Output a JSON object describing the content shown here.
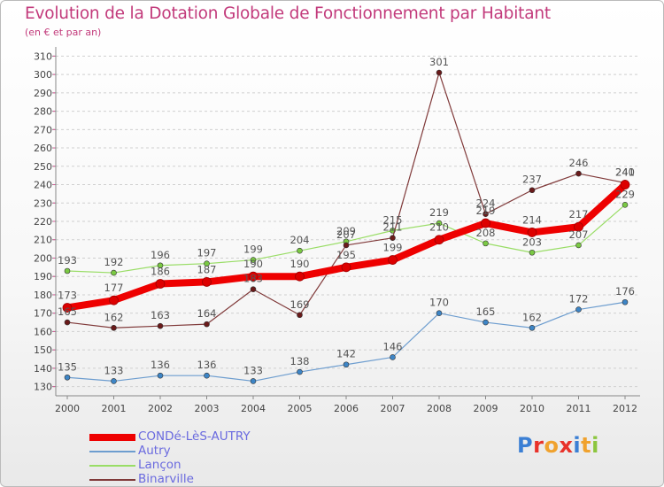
{
  "title": "Evolution de la Dotation Globale de Fonctionnement par Habitant",
  "subtitle": "(en € et par an)",
  "logo": {
    "text": "Proxiti",
    "letter_colors": [
      "#3b7fd4",
      "#e8322a",
      "#f0a22e",
      "#e8322a",
      "#3b7fd4",
      "#f0a22e",
      "#8cc63f"
    ]
  },
  "chart_data": {
    "type": "line",
    "title": "Evolution de la Dotation Globale de Fonctionnement par Habitant",
    "subtitle": "(en € et par an)",
    "xlabel": "",
    "ylabel": "",
    "x": [
      "2000",
      "2001",
      "2002",
      "2003",
      "2004",
      "2005",
      "2006",
      "2007",
      "2008",
      "2009",
      "2010",
      "2011",
      "2012"
    ],
    "ylim": [
      125,
      315
    ],
    "yticks": [
      130,
      140,
      150,
      160,
      170,
      180,
      190,
      200,
      210,
      220,
      230,
      240,
      250,
      260,
      270,
      280,
      290,
      300,
      310
    ],
    "grid": "horizontal dashed",
    "legend_position": "bottom-left",
    "series": [
      {
        "name": "CONDé-LèS-AUTRY",
        "color": "#ee0000",
        "marker": "#dd0000",
        "thick": true,
        "values": [
          173,
          177,
          186,
          187,
          190,
          190,
          195,
          199,
          210,
          219,
          214,
          217,
          240
        ]
      },
      {
        "name": "Autry",
        "color": "#6d9dcf",
        "marker": "#3d85c6",
        "thick": false,
        "values": [
          135,
          133,
          136,
          136,
          133,
          138,
          142,
          146,
          170,
          165,
          162,
          172,
          176
        ]
      },
      {
        "name": "Lançon",
        "color": "#99dd66",
        "marker": "#7ac943",
        "thick": false,
        "values": [
          193,
          192,
          196,
          197,
          199,
          204,
          209,
          215,
          219,
          208,
          203,
          207,
          229
        ]
      },
      {
        "name": "Binarville",
        "color": "#803a3a",
        "marker": "#6a1a1a",
        "thick": false,
        "values": [
          165,
          162,
          163,
          164,
          183,
          169,
          207,
          211,
          301,
          224,
          237,
          246,
          241
        ]
      }
    ]
  }
}
